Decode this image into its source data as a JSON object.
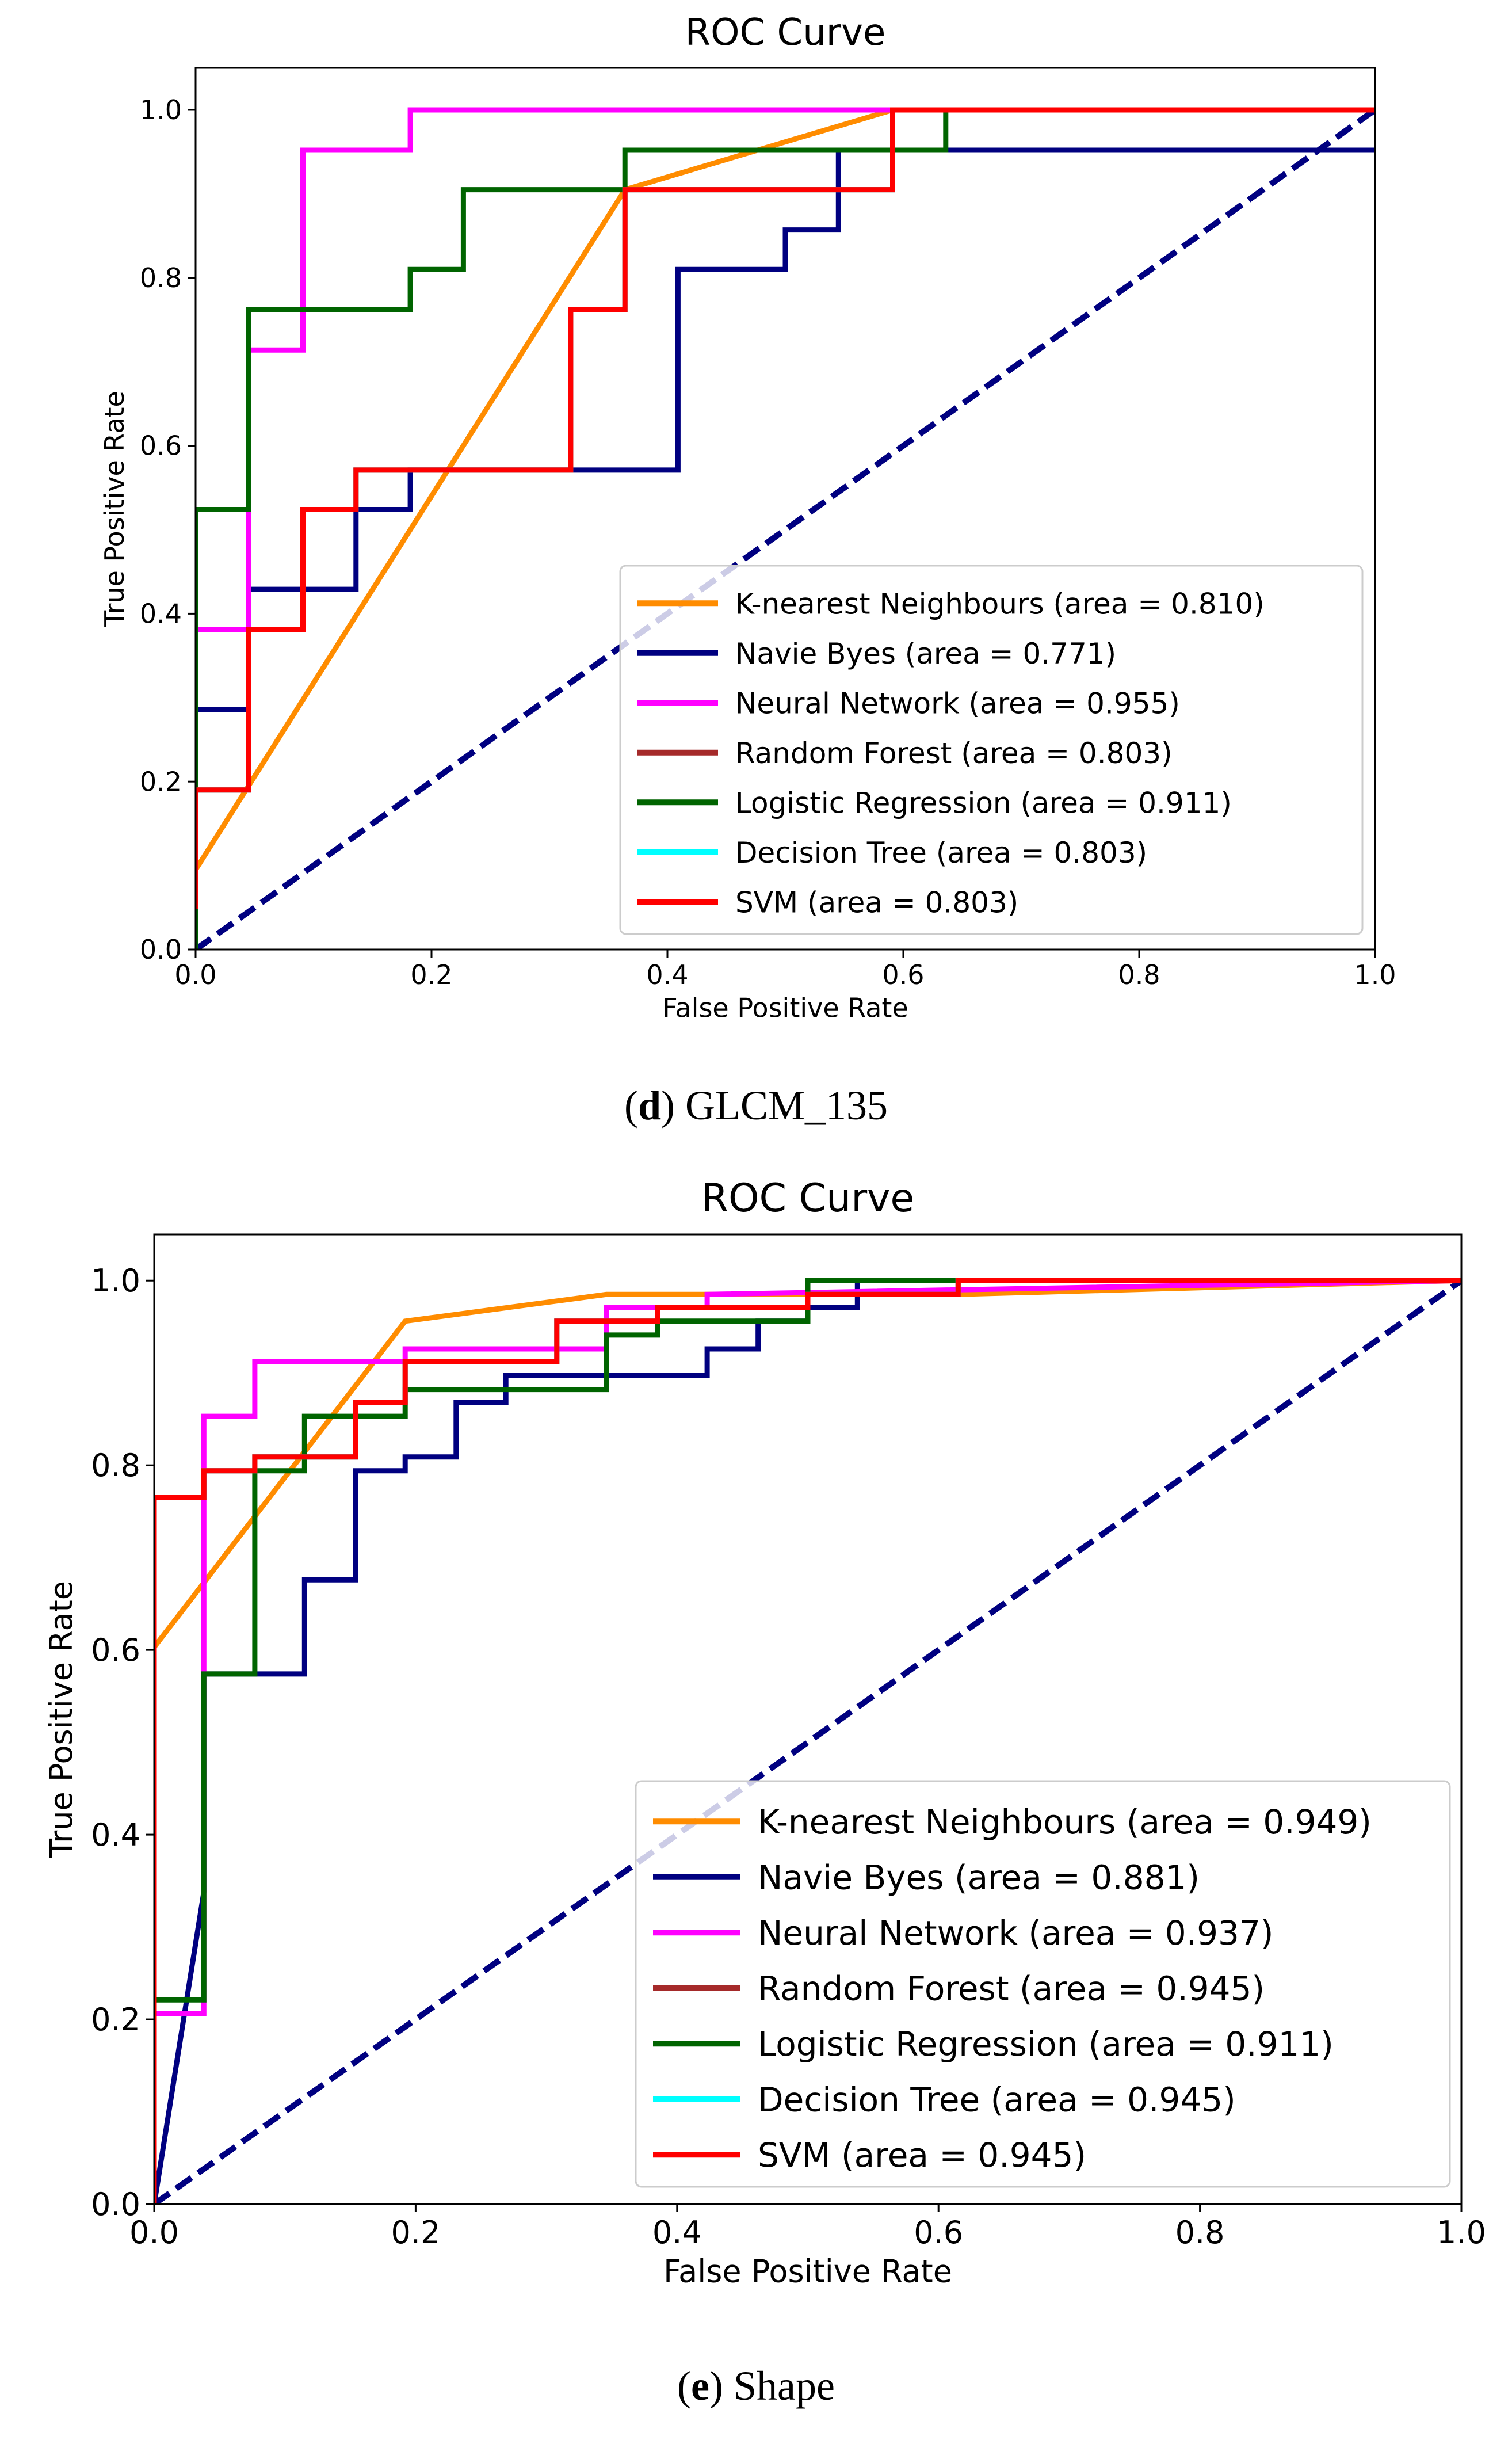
{
  "figure_captions": [
    {
      "letter": "d",
      "text": "GLCM_135"
    },
    {
      "letter": "e",
      "text": "Shape"
    }
  ],
  "chart_data": [
    {
      "type": "line",
      "title": "ROC Curve",
      "xlabel": "False Positive Rate",
      "ylabel": "True Positive Rate",
      "xlim": [
        0,
        1
      ],
      "ylim": [
        0,
        1.05
      ],
      "xticks": [
        "0.0",
        "0.2",
        "0.4",
        "0.6",
        "0.8",
        "1.0"
      ],
      "yticks": [
        "0.0",
        "0.2",
        "0.4",
        "0.6",
        "0.8",
        "1.0"
      ],
      "legend_position": "lower-right",
      "colors": {
        "knn": "#ff8c00",
        "nb": "#000080",
        "nn": "#ff00ff",
        "rf": "#a52a2a",
        "lr": "#006400",
        "dt": "#00ffff",
        "svm": "#ff0000",
        "chance": "#000080"
      },
      "series": [
        {
          "key": "knn",
          "name": "K-nearest Neighbours (area = 0.810)",
          "color": "#ff8c00",
          "x": [
            0,
            0.364,
            0.591,
            1.0
          ],
          "y": [
            0.095,
            0.905,
            1.0,
            1.0
          ]
        },
        {
          "key": "nb",
          "name": "Navie Byes (area = 0.771)",
          "color": "#000080",
          "x": [
            0,
            0,
            0.045,
            0.045,
            0.136,
            0.136,
            0.182,
            0.182,
            0.409,
            0.409,
            0.5,
            0.5,
            0.545,
            0.545,
            1.0
          ],
          "y": [
            0,
            0.286,
            0.286,
            0.429,
            0.429,
            0.524,
            0.524,
            0.571,
            0.571,
            0.81,
            0.81,
            0.857,
            0.857,
            0.952,
            0.952
          ]
        },
        {
          "key": "nn",
          "name": "Neural Network (area = 0.955)",
          "color": "#ff00ff",
          "x": [
            0,
            0,
            0.045,
            0.045,
            0.091,
            0.091,
            0.182,
            0.182,
            1.0
          ],
          "y": [
            0,
            0.381,
            0.381,
            0.714,
            0.714,
            0.952,
            0.952,
            1.0,
            1.0
          ]
        },
        {
          "key": "rf",
          "name": "Random Forest (area = 0.803)",
          "color": "#a52a2a",
          "x": [
            0,
            0,
            0.045,
            0.045,
            0.091,
            0.091,
            0.136,
            0.136,
            0.318,
            0.318,
            0.364,
            0.364,
            0.591,
            0.591,
            1.0
          ],
          "y": [
            0.048,
            0.19,
            0.19,
            0.381,
            0.381,
            0.524,
            0.524,
            0.571,
            0.571,
            0.762,
            0.762,
            0.905,
            0.905,
            1.0,
            1.0
          ]
        },
        {
          "key": "lr",
          "name": "Logistic Regression (area = 0.911)",
          "color": "#006400",
          "x": [
            0,
            0,
            0.045,
            0.045,
            0.182,
            0.182,
            0.227,
            0.227,
            0.364,
            0.364,
            0.636,
            0.636,
            1.0
          ],
          "y": [
            0,
            0.524,
            0.524,
            0.762,
            0.762,
            0.81,
            0.81,
            0.905,
            0.905,
            0.952,
            0.952,
            1.0,
            1.0
          ]
        },
        {
          "key": "dt",
          "name": "Decision Tree (area = 0.803)",
          "color": "#00ffff",
          "x": [
            0,
            0,
            0.045,
            0.045,
            0.091,
            0.091,
            0.136,
            0.136,
            0.318,
            0.318,
            0.364,
            0.364,
            0.591,
            0.591,
            1.0
          ],
          "y": [
            0.048,
            0.19,
            0.19,
            0.381,
            0.381,
            0.524,
            0.524,
            0.571,
            0.571,
            0.762,
            0.762,
            0.905,
            0.905,
            1.0,
            1.0
          ]
        },
        {
          "key": "svm",
          "name": "SVM (area = 0.803)",
          "color": "#ff0000",
          "x": [
            0,
            0,
            0.045,
            0.045,
            0.091,
            0.091,
            0.136,
            0.136,
            0.318,
            0.318,
            0.364,
            0.364,
            0.591,
            0.591,
            1.0
          ],
          "y": [
            0.048,
            0.19,
            0.19,
            0.381,
            0.381,
            0.524,
            0.524,
            0.571,
            0.571,
            0.762,
            0.762,
            0.905,
            0.905,
            1.0,
            1.0
          ]
        }
      ],
      "chance_line": {
        "x": [
          0,
          1
        ],
        "y": [
          0,
          1
        ],
        "style": "dashed"
      }
    },
    {
      "type": "line",
      "title": "ROC Curve",
      "xlabel": "False Positive Rate",
      "ylabel": "True Positive Rate",
      "xlim": [
        0,
        1
      ],
      "ylim": [
        0,
        1.05
      ],
      "xticks": [
        "0.0",
        "0.2",
        "0.4",
        "0.6",
        "0.8",
        "1.0"
      ],
      "yticks": [
        "0.0",
        "0.2",
        "0.4",
        "0.6",
        "0.8",
        "1.0"
      ],
      "legend_position": "lower-right",
      "series": [
        {
          "key": "knn",
          "name": "K-nearest Neighbours (area = 0.949)",
          "color": "#ff8c00",
          "x": [
            0,
            0.192,
            0.346,
            0.615,
            1.0
          ],
          "y": [
            0.603,
            0.956,
            0.985,
            0.985,
            1.0
          ]
        },
        {
          "key": "nb",
          "name": "Navie Byes (area = 0.881)",
          "color": "#000080",
          "x": [
            0,
            0.038,
            0.038,
            0.115,
            0.115,
            0.154,
            0.154,
            0.192,
            0.192,
            0.231,
            0.231,
            0.269,
            0.269,
            0.308,
            0.308,
            0.423,
            0.423,
            0.462,
            0.462,
            0.5,
            0.5,
            0.538,
            0.538,
            1.0
          ],
          "y": [
            0,
            0.338,
            0.574,
            0.574,
            0.676,
            0.676,
            0.794,
            0.794,
            0.809,
            0.809,
            0.868,
            0.868,
            0.897,
            0.897,
            0.897,
            0.897,
            0.926,
            0.926,
            0.956,
            0.956,
            0.971,
            0.971,
            1.0,
            1.0
          ]
        },
        {
          "key": "nn",
          "name": "Neural Network (area = 0.937)",
          "color": "#ff00ff",
          "x": [
            0,
            0,
            0.038,
            0.038,
            0.077,
            0.077,
            0.192,
            0.192,
            0.346,
            0.346,
            0.423,
            0.423,
            1.0
          ],
          "y": [
            0,
            0.206,
            0.206,
            0.853,
            0.853,
            0.912,
            0.912,
            0.926,
            0.926,
            0.971,
            0.971,
            0.985,
            1.0
          ]
        },
        {
          "key": "rf",
          "name": "Random Forest (area = 0.945)",
          "color": "#a52a2a",
          "x": [
            0,
            0,
            0.038,
            0.038,
            0.077,
            0.077,
            0.154,
            0.154,
            0.192,
            0.192,
            0.308,
            0.308,
            0.385,
            0.385,
            0.5,
            0.5,
            0.615,
            0.615,
            1.0
          ],
          "y": [
            0,
            0.765,
            0.765,
            0.794,
            0.794,
            0.809,
            0.809,
            0.868,
            0.868,
            0.912,
            0.912,
            0.956,
            0.956,
            0.971,
            0.971,
            0.985,
            0.985,
            1.0,
            1.0
          ]
        },
        {
          "key": "lr",
          "name": "Logistic Regression (area = 0.911)",
          "color": "#006400",
          "x": [
            0,
            0,
            0.038,
            0.038,
            0.077,
            0.077,
            0.115,
            0.115,
            0.192,
            0.192,
            0.308,
            0.308,
            0.346,
            0.346,
            0.385,
            0.385,
            0.5,
            0.5,
            1.0
          ],
          "y": [
            0,
            0.221,
            0.221,
            0.574,
            0.574,
            0.794,
            0.794,
            0.853,
            0.853,
            0.882,
            0.882,
            0.882,
            0.882,
            0.941,
            0.941,
            0.956,
            0.956,
            1.0,
            1.0
          ]
        },
        {
          "key": "dt",
          "name": "Decision Tree (area = 0.945)",
          "color": "#00ffff",
          "x": [
            0,
            0,
            0.038,
            0.038,
            0.077,
            0.077,
            0.154,
            0.154,
            0.192,
            0.192,
            0.308,
            0.308,
            0.385,
            0.385,
            0.5,
            0.5,
            0.615,
            0.615,
            1.0
          ],
          "y": [
            0,
            0.765,
            0.765,
            0.794,
            0.794,
            0.809,
            0.809,
            0.868,
            0.868,
            0.912,
            0.912,
            0.956,
            0.956,
            0.971,
            0.971,
            0.985,
            0.985,
            1.0,
            1.0
          ]
        },
        {
          "key": "svm",
          "name": "SVM (area = 0.945)",
          "color": "#ff0000",
          "x": [
            0,
            0,
            0.038,
            0.038,
            0.077,
            0.077,
            0.154,
            0.154,
            0.192,
            0.192,
            0.308,
            0.308,
            0.385,
            0.385,
            0.5,
            0.5,
            0.615,
            0.615,
            1.0
          ],
          "y": [
            0,
            0.765,
            0.765,
            0.794,
            0.794,
            0.809,
            0.809,
            0.868,
            0.868,
            0.912,
            0.912,
            0.956,
            0.956,
            0.971,
            0.971,
            0.985,
            0.985,
            1.0,
            1.0
          ]
        }
      ],
      "chance_line": {
        "x": [
          0,
          1
        ],
        "y": [
          0,
          1
        ],
        "style": "dashed"
      }
    }
  ]
}
